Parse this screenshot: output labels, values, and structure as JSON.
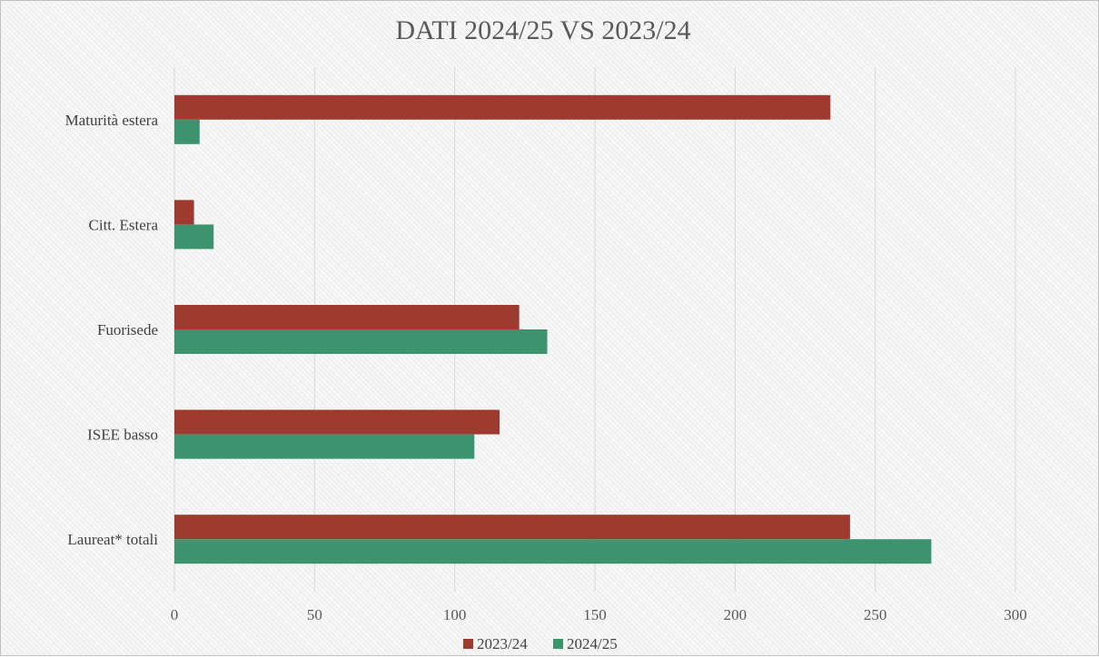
{
  "chart_data": {
    "type": "bar",
    "orientation": "horizontal",
    "title": "DATI 2024/25 VS 2023/24",
    "xlabel": "",
    "ylabel": "",
    "categories": [
      "Laureat* totali",
      "ISEE basso",
      "Fuorisede",
      "Citt. Estera",
      "Maturità estera"
    ],
    "series": [
      {
        "name": "2023/24",
        "color": "#9e3a30",
        "values": [
          241,
          116,
          123,
          7,
          234
        ]
      },
      {
        "name": "2024/25",
        "color": "#3d936e",
        "values": [
          270,
          107,
          133,
          14,
          9
        ]
      }
    ],
    "xlim": [
      0,
      300
    ],
    "xticks": [
      "0",
      "50",
      "100",
      "150",
      "200",
      "250",
      "300"
    ],
    "grid": true,
    "legend_position": "bottom"
  }
}
